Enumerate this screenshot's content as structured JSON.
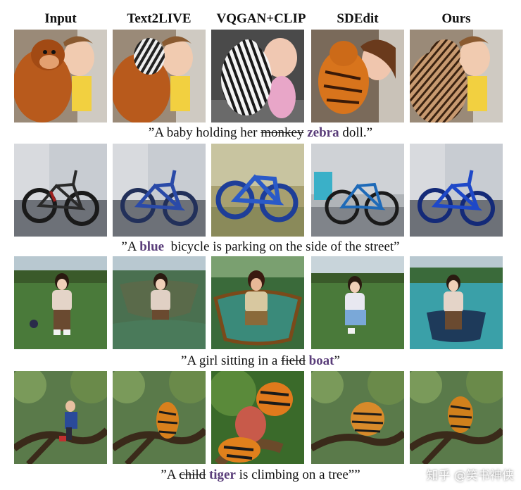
{
  "columns": [
    "Input",
    "Text2LIVE",
    "VQGAN+CLIP",
    "SDEdit",
    "Ours"
  ],
  "captions": [
    {
      "prefix": "”A baby holding her ",
      "strike": "monkey",
      "space": " ",
      "accent": "zebra",
      "suffix": " doll.”"
    },
    {
      "prefix": "”A ",
      "strike": "",
      "space": "",
      "accent": "blue",
      "suffix": "  bicycle is parking on the side of the street”"
    },
    {
      "prefix": "”A girl sitting in a ",
      "strike": "field",
      "space": " ",
      "accent": "boat",
      "suffix": "”"
    },
    {
      "prefix": "”A ",
      "strike": "child",
      "space": " ",
      "accent": "tiger",
      "suffix": " is climbing on a tree””"
    }
  ],
  "watermark": "知乎 @笑书神侠",
  "colors": {
    "accent": "#5a3d7a"
  }
}
